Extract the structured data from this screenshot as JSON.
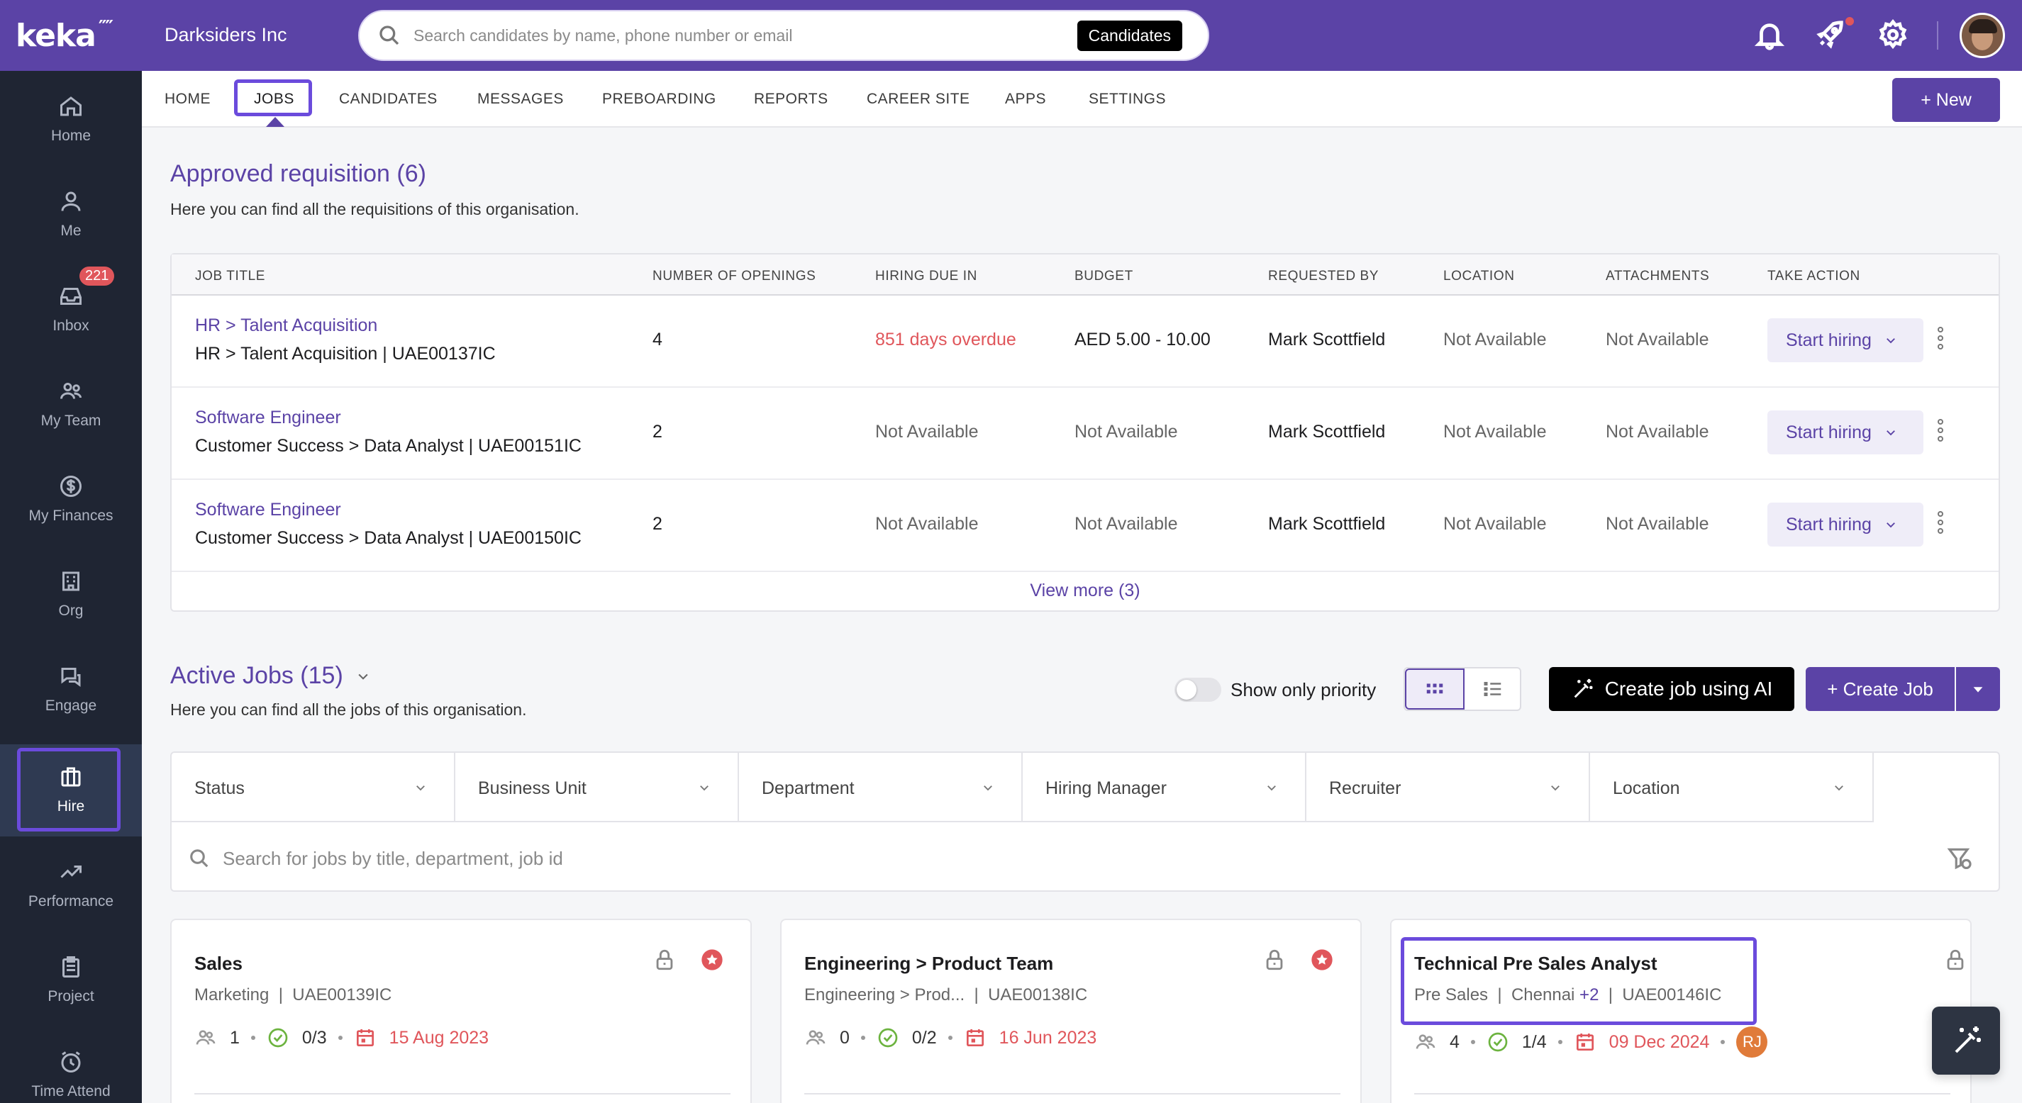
{
  "brand": {
    "logo_text": "keka",
    "org_name": "Darksiders Inc"
  },
  "search": {
    "placeholder": "Search candidates by name, phone number or email",
    "scope": "Candidates"
  },
  "sidebar": {
    "items": [
      {
        "label": "Home",
        "icon": "home-icon"
      },
      {
        "label": "Me",
        "icon": "user-icon"
      },
      {
        "label": "Inbox",
        "icon": "inbox-icon",
        "badge": "221"
      },
      {
        "label": "My Team",
        "icon": "team-icon"
      },
      {
        "label": "My Finances",
        "icon": "dollar-icon"
      },
      {
        "label": "Org",
        "icon": "building-icon"
      },
      {
        "label": "Engage",
        "icon": "chat-icon"
      },
      {
        "label": "Hire",
        "icon": "briefcase-icon",
        "active": true
      },
      {
        "label": "Performance",
        "icon": "trend-icon"
      },
      {
        "label": "Project",
        "icon": "clipboard-icon"
      },
      {
        "label": "Time Attend",
        "icon": "clock-icon"
      }
    ]
  },
  "subnav": {
    "items": [
      "HOME",
      "JOBS",
      "CANDIDATES",
      "MESSAGES",
      "PREBOARDING",
      "REPORTS",
      "CAREER SITE",
      "APPS",
      "SETTINGS"
    ],
    "active": "JOBS",
    "new_label": "+ New"
  },
  "requisitions": {
    "title": "Approved requisition (6)",
    "subtitle": "Here you can find all the requisitions of this organisation.",
    "columns": [
      "JOB TITLE",
      "NUMBER OF OPENINGS",
      "HIRING DUE IN",
      "BUDGET",
      "REQUESTED BY",
      "LOCATION",
      "ATTACHMENTS",
      "TAKE ACTION"
    ],
    "rows": [
      {
        "title": "HR > Talent Acquisition",
        "detail": "HR > Talent Acquisition | UAE00137IC",
        "openings": "4",
        "due": "851 days overdue",
        "budget": "AED 5.00 - 10.00",
        "requested_by": "Mark Scottfield",
        "location": "Not Available",
        "attachments": "Not Available",
        "action": "Start hiring"
      },
      {
        "title": "Software Engineer",
        "detail": "Customer Success > Data Analyst | UAE00151IC",
        "openings": "2",
        "due": "Not Available",
        "budget": "Not Available",
        "requested_by": "Mark Scottfield",
        "location": "Not Available",
        "attachments": "Not Available",
        "action": "Start hiring"
      },
      {
        "title": "Software Engineer",
        "detail": "Customer Success > Data Analyst | UAE00150IC",
        "openings": "2",
        "due": "Not Available",
        "budget": "Not Available",
        "requested_by": "Mark Scottfield",
        "location": "Not Available",
        "attachments": "Not Available",
        "action": "Start hiring"
      }
    ],
    "view_more": "View more (3)"
  },
  "active_jobs": {
    "title": "Active Jobs (15)",
    "subtitle": "Here you can find all the jobs of this organisation.",
    "priority_label": "Show only priority",
    "priority_on": false,
    "ai_label": "Create job using AI",
    "create_label": "+ Create Job",
    "filters": [
      "Status",
      "Business Unit",
      "Department",
      "Hiring Manager",
      "Recruiter",
      "Location"
    ],
    "search_placeholder": "Search for jobs by title, department, job id",
    "cards": [
      {
        "title": "Sales",
        "dept": "Marketing",
        "location": "",
        "extra": "",
        "job_id": "UAE00139IC",
        "members": "1",
        "progress": "0/3",
        "date": "15 Aug 2023",
        "starred": true,
        "avatar": ""
      },
      {
        "title": "Engineering > Product Team",
        "dept": "Engineering > Prod...",
        "location": "",
        "extra": "",
        "job_id": "UAE00138IC",
        "members": "0",
        "progress": "0/2",
        "date": "16 Jun 2023",
        "starred": true,
        "avatar": ""
      },
      {
        "title": "Technical Pre Sales Analyst",
        "dept": "Pre Sales",
        "location": "Chennai",
        "extra": "+2",
        "job_id": "UAE00146IC",
        "members": "4",
        "progress": "1/4",
        "date": "09 Dec 2024",
        "starred": false,
        "avatar": "RJ"
      }
    ]
  },
  "colors": {
    "brand": "#5b43a6",
    "sidebar": "#1f2533",
    "alert": "#e0565b",
    "highlight": "#6b4bdc"
  }
}
